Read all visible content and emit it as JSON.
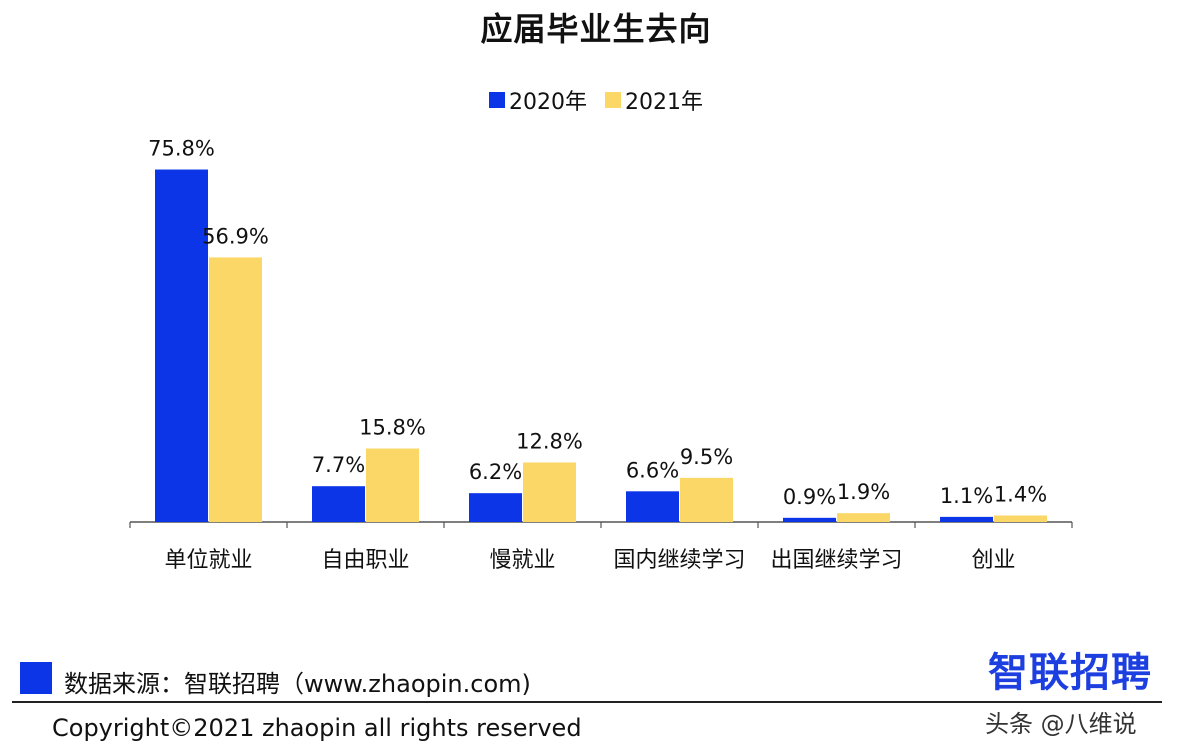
{
  "chart_data": {
    "type": "bar",
    "title": "应届毕业生去向",
    "categories": [
      "单位就业",
      "自由职业",
      "慢就业",
      "国内继续学习",
      "出国继续学习",
      "创业"
    ],
    "series": [
      {
        "name": "2020年",
        "color": "#0B35E6",
        "values": [
          75.8,
          7.7,
          6.2,
          6.6,
          0.9,
          1.1
        ]
      },
      {
        "name": "2021年",
        "color": "#FBD768",
        "values": [
          56.9,
          15.8,
          12.8,
          9.5,
          1.9,
          1.4
        ]
      }
    ],
    "data_labels": [
      [
        "75.8%",
        "7.7%",
        "6.2%",
        "6.6%",
        "0.9%",
        "1.1%"
      ],
      [
        "56.9%",
        "15.8%",
        "12.8%",
        "9.5%",
        "1.9%",
        "1.4%"
      ]
    ],
    "xlabel": "",
    "ylabel": "",
    "ylim": [
      0,
      80
    ],
    "grid": false,
    "legend_position": "top-center"
  },
  "footer": {
    "source": "数据来源：智联招聘（www.zhaopin.com)",
    "copyright": "Copyright©2021 zhaopin all rights reserved",
    "logo_text": "智联招聘",
    "watermark": "头条 @八维说",
    "logo_color": "#1D3FE0",
    "source_box_color": "#0B35E6"
  }
}
